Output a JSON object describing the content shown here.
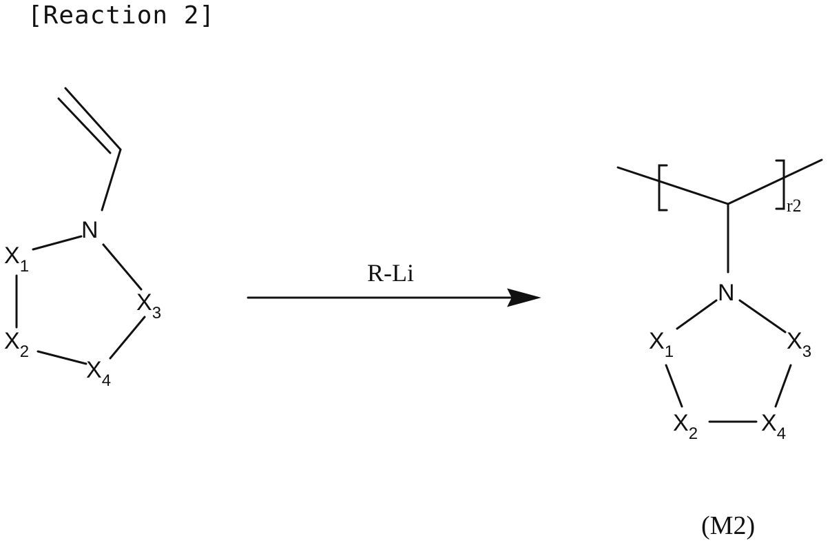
{
  "header": {
    "title": "[Reaction 2]"
  },
  "reagent": {
    "label": "R-Li"
  },
  "reactant": {
    "atoms": {
      "n": "N",
      "x1": {
        "main": "X",
        "sub": "1"
      },
      "x2": {
        "main": "X",
        "sub": "2"
      },
      "x3": {
        "main": "X",
        "sub": "3"
      },
      "x4": {
        "main": "X",
        "sub": "4"
      }
    }
  },
  "product": {
    "atoms": {
      "n": "N",
      "x1": {
        "main": "X",
        "sub": "1"
      },
      "x2": {
        "main": "X",
        "sub": "2"
      },
      "x3": {
        "main": "X",
        "sub": "3"
      },
      "x4": {
        "main": "X",
        "sub": "4"
      }
    },
    "repeat_subscript": "r2",
    "label": "(M2)"
  }
}
